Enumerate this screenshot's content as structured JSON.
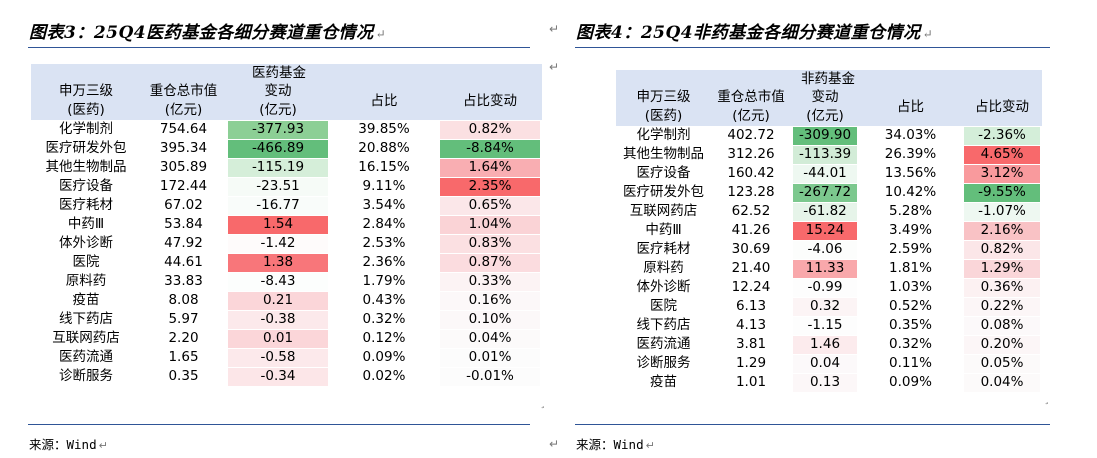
{
  "left": {
    "title": "图表3：25Q4医药基金各细分赛道重仓情况",
    "group_header": "医药基金",
    "headers": {
      "c1a": "申万三级",
      "c1b": "(医药)",
      "c2a": "重仓总市值",
      "c2b": "(亿元)",
      "c3a": "变动",
      "c3b": "(亿元)",
      "c4": "占比",
      "c5": "占比变动"
    },
    "rows": [
      {
        "name": "化学制剂",
        "mv": "754.64",
        "chg": "-377.93",
        "share": "39.85%",
        "share_chg": "0.82%",
        "chg_bg": "#8ccf95",
        "sc_bg": "#fbe0e2"
      },
      {
        "name": "医疗研发外包",
        "mv": "395.34",
        "chg": "-466.89",
        "share": "20.88%",
        "share_chg": "-8.84%",
        "chg_bg": "#63be7b",
        "sc_bg": "#63be7b"
      },
      {
        "name": "其他生物制品",
        "mv": "305.89",
        "chg": "-115.19",
        "share": "16.15%",
        "share_chg": "1.64%",
        "chg_bg": "#d5eed9",
        "sc_bg": "#f9aeb2"
      },
      {
        "name": "医疗设备",
        "mv": "172.44",
        "chg": "-23.51",
        "share": "9.11%",
        "share_chg": "2.35%",
        "chg_bg": "#f6fbf7",
        "sc_bg": "#f8696b"
      },
      {
        "name": "医疗耗材",
        "mv": "67.02",
        "chg": "-16.77",
        "share": "3.54%",
        "share_chg": "0.65%",
        "chg_bg": "#f9fcfa",
        "sc_bg": "#fbe7e9"
      },
      {
        "name": "中药Ⅲ",
        "mv": "53.84",
        "chg": "1.54",
        "share": "2.84%",
        "share_chg": "1.04%",
        "chg_bg": "#f8696b",
        "sc_bg": "#fad3d6"
      },
      {
        "name": "体外诊断",
        "mv": "47.92",
        "chg": "-1.42",
        "share": "2.53%",
        "share_chg": "0.83%",
        "chg_bg": "#fefbfb",
        "sc_bg": "#fbe0e2"
      },
      {
        "name": "医院",
        "mv": "44.61",
        "chg": "1.38",
        "share": "2.36%",
        "share_chg": "0.87%",
        "chg_bg": "#f8767a",
        "sc_bg": "#fbdcdf"
      },
      {
        "name": "原料药",
        "mv": "33.83",
        "chg": "-8.43",
        "share": "1.79%",
        "share_chg": "0.33%",
        "chg_bg": "#fcfefd",
        "sc_bg": "#fcf3f4"
      },
      {
        "name": "疫苗",
        "mv": "8.08",
        "chg": "0.21",
        "share": "0.43%",
        "share_chg": "0.16%",
        "chg_bg": "#fbd6d9",
        "sc_bg": "#fcf8f9"
      },
      {
        "name": "线下药店",
        "mv": "5.97",
        "chg": "-0.38",
        "share": "0.32%",
        "share_chg": "0.10%",
        "chg_bg": "#fce9eb",
        "sc_bg": "#fcf8f9"
      },
      {
        "name": "互联网药店",
        "mv": "2.20",
        "chg": "0.01",
        "share": "0.12%",
        "share_chg": "0.04%",
        "chg_bg": "#fbd6d9",
        "sc_bg": "#fcfafa"
      },
      {
        "name": "医药流通",
        "mv": "1.65",
        "chg": "-0.58",
        "share": "0.09%",
        "share_chg": "0.01%",
        "chg_bg": "#fce9eb",
        "sc_bg": "#fcfcfc"
      },
      {
        "name": "诊断服务",
        "mv": "0.35",
        "chg": "-0.34",
        "share": "0.02%",
        "share_chg": "-0.01%",
        "chg_bg": "#fce6e8",
        "sc_bg": "#fcfcfc"
      }
    ],
    "source": "来源：Wind"
  },
  "right": {
    "title": "图表4：25Q4非药基金各细分赛道重仓情况",
    "group_header": "非药基金",
    "headers": {
      "c1a": "申万三级",
      "c1b": "(医药)",
      "c2a": "重仓总市值",
      "c2b": "(亿元)",
      "c3a": "变动",
      "c3b": "(亿元)",
      "c4": "占比",
      "c5": "占比变动"
    },
    "rows": [
      {
        "name": "化学制剂",
        "mv": "402.72",
        "chg": "-309.90",
        "share": "34.03%",
        "share_chg": "-2.36%",
        "chg_bg": "#63be7b",
        "sc_bg": "#d4eed9"
      },
      {
        "name": "其他生物制品",
        "mv": "312.26",
        "chg": "-113.39",
        "share": "26.39%",
        "share_chg": "4.65%",
        "chg_bg": "#d2ecd7",
        "sc_bg": "#f8696b"
      },
      {
        "name": "医疗设备",
        "mv": "160.42",
        "chg": "-44.01",
        "share": "13.56%",
        "share_chg": "3.12%",
        "chg_bg": "#eef8f1",
        "sc_bg": "#f99a9d"
      },
      {
        "name": "医疗研发外包",
        "mv": "123.28",
        "chg": "-267.72",
        "share": "10.42%",
        "share_chg": "-9.55%",
        "chg_bg": "#7cc88e",
        "sc_bg": "#63be7b"
      },
      {
        "name": "互联网药店",
        "mv": "62.52",
        "chg": "-61.82",
        "share": "5.28%",
        "share_chg": "-1.07%",
        "chg_bg": "#e6f4e9",
        "sc_bg": "#eef8f1"
      },
      {
        "name": "中药Ⅲ",
        "mv": "41.26",
        "chg": "15.24",
        "share": "3.49%",
        "share_chg": "2.16%",
        "chg_bg": "#f8696b",
        "sc_bg": "#f9c2c5"
      },
      {
        "name": "医疗耗材",
        "mv": "30.69",
        "chg": "-4.06",
        "share": "2.59%",
        "share_chg": "0.82%",
        "chg_bg": "#fcfdfc",
        "sc_bg": "#fbe6e8"
      },
      {
        "name": "原料药",
        "mv": "21.40",
        "chg": "11.33",
        "share": "1.81%",
        "share_chg": "1.29%",
        "chg_bg": "#f9a8ab",
        "sc_bg": "#fad6d9"
      },
      {
        "name": "体外诊断",
        "mv": "12.24",
        "chg": "-0.99",
        "share": "1.03%",
        "share_chg": "0.36%",
        "chg_bg": "#fdfdfd",
        "sc_bg": "#fcf1f2"
      },
      {
        "name": "医院",
        "mv": "6.13",
        "chg": "0.32",
        "share": "0.52%",
        "share_chg": "0.22%",
        "chg_bg": "#fcf4f5",
        "sc_bg": "#fcf6f7"
      },
      {
        "name": "线下药店",
        "mv": "4.13",
        "chg": "-1.15",
        "share": "0.35%",
        "share_chg": "0.08%",
        "chg_bg": "#fdfdfd",
        "sc_bg": "#fcf9fa"
      },
      {
        "name": "医药流通",
        "mv": "3.81",
        "chg": "1.46",
        "share": "0.32%",
        "share_chg": "0.20%",
        "chg_bg": "#fcebed",
        "sc_bg": "#fcf6f7"
      },
      {
        "name": "诊断服务",
        "mv": "1.29",
        "chg": "0.04",
        "share": "0.11%",
        "share_chg": "0.05%",
        "chg_bg": "#fcf9fa",
        "sc_bg": "#fcfafa"
      },
      {
        "name": "疫苗",
        "mv": "1.01",
        "chg": "0.13",
        "share": "0.09%",
        "share_chg": "0.04%",
        "chg_bg": "#fcf7f8",
        "sc_bg": "#fcfafa"
      }
    ],
    "source": "来源：Wind"
  },
  "marks": {
    "return": "↵"
  }
}
